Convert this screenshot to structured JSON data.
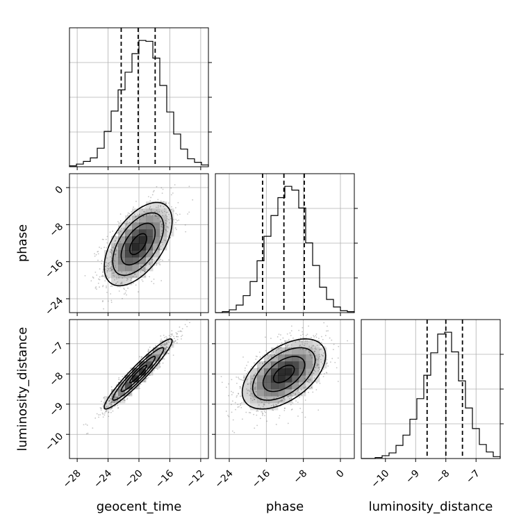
{
  "chart_data": {
    "type": "scatter",
    "kind": "corner-plot",
    "parameters": [
      {
        "name": "geocent_time",
        "median": -20.1,
        "q16": -22.3,
        "q84": -17.9,
        "range": [
          -29,
          -11
        ],
        "ticks": [
          -28,
          -24,
          -20,
          -16,
          -12
        ],
        "tick_labels": [
          "−28",
          "−24",
          "−20",
          "−16",
          "−12"
        ]
      },
      {
        "name": "phase",
        "median": -12.2,
        "q16": -16.8,
        "q84": -7.8,
        "range": [
          -27,
          3
        ],
        "ticks": [
          -24,
          -16,
          -8,
          0
        ],
        "tick_labels": [
          "−24",
          "−16",
          "−8",
          "0"
        ]
      },
      {
        "name": "luminosity_distance",
        "median": -8.0,
        "q16": -8.62,
        "q84": -7.45,
        "range": [
          -10.8,
          -6.2
        ],
        "ticks": [
          -10,
          -9,
          -8,
          -7
        ],
        "tick_labels": [
          "−10",
          "−9",
          "−8",
          "−7"
        ]
      }
    ],
    "histograms": [
      {
        "param": "geocent_time",
        "edges_start": -29,
        "bin_width": 0.9,
        "counts": [
          1,
          3,
          6,
          10,
          21,
          40,
          63,
          87,
          107,
          128,
          143,
          142,
          123,
          92,
          62,
          37,
          20,
          9,
          5,
          2
        ]
      },
      {
        "param": "phase",
        "edges_start": -27,
        "bin_width": 1.5,
        "counts": [
          0,
          1,
          3,
          8,
          18,
          33,
          55,
          81,
          103,
          122,
          134,
          130,
          111,
          74,
          50,
          27,
          14,
          6,
          2,
          1
        ]
      },
      {
        "param": "luminosity_distance",
        "edges_start": -10.8,
        "bin_width": 0.23,
        "counts": [
          0,
          0,
          1,
          3,
          6,
          14,
          25,
          42,
          64,
          89,
          113,
          133,
          135,
          114,
          83,
          54,
          32,
          15,
          7,
          2
        ]
      }
    ],
    "correlations": [
      {
        "x": "geocent_time",
        "y": "phase",
        "rho": 0.55
      },
      {
        "x": "geocent_time",
        "y": "luminosity_distance",
        "rho": 0.95
      },
      {
        "x": "phase",
        "y": "luminosity_distance",
        "rho": 0.52
      }
    ],
    "sigmas": {
      "geocent_time": 2.2,
      "phase": 4.5,
      "luminosity_distance": 0.58
    },
    "contour_levels_sigma": [
      0.5,
      1.0,
      1.5,
      2.0
    ],
    "grid": true,
    "colors": {
      "line": "#000000",
      "grid": "#b0b0b0",
      "points": "#555555"
    }
  }
}
